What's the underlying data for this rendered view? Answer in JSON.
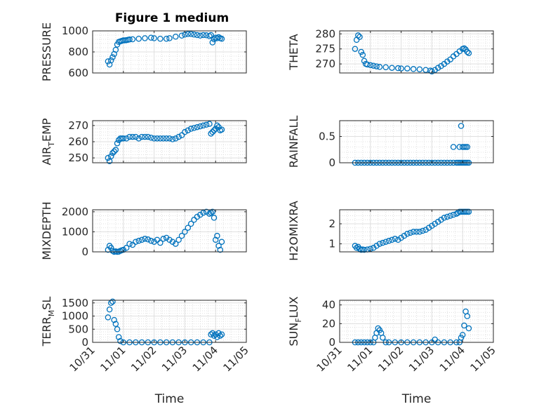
{
  "figure": {
    "title": "Figure 1 medium",
    "marker_color": "#0072BD"
  },
  "x_ticks": [
    "10/31",
    "11/01",
    "11/02",
    "11/03",
    "11/04",
    "11/05"
  ],
  "chart_data": [
    {
      "type": "scatter",
      "ylabel": "PRESSURE",
      "xlabel": "",
      "title": "Figure 1 medium",
      "xlim": [
        "10/31",
        "11/05"
      ],
      "ylim": [
        600,
        1000
      ],
      "yticks": [
        600,
        800,
        1000
      ],
      "grid": true,
      "x": [
        0.5,
        0.55,
        0.6,
        0.65,
        0.7,
        0.75,
        0.8,
        0.85,
        0.9,
        0.95,
        1.0,
        1.05,
        1.1,
        1.15,
        1.2,
        1.3,
        1.5,
        1.7,
        1.9,
        2.0,
        2.2,
        2.4,
        2.5,
        2.7,
        2.9,
        3.0,
        3.1,
        3.2,
        3.3,
        3.4,
        3.5,
        3.6,
        3.7,
        3.8,
        3.85,
        3.9,
        3.95,
        4.0,
        4.05,
        4.1,
        4.15,
        4.2
      ],
      "y": [
        710,
        680,
        720,
        750,
        780,
        820,
        870,
        895,
        900,
        905,
        910,
        910,
        912,
        915,
        918,
        920,
        925,
        930,
        935,
        930,
        925,
        925,
        930,
        945,
        955,
        965,
        970,
        970,
        965,
        960,
        955,
        960,
        958,
        950,
        960,
        890,
        920,
        935,
        930,
        940,
        930,
        925
      ]
    },
    {
      "type": "scatter",
      "ylabel": "THETA",
      "xlabel": "",
      "xlim": [
        "10/31",
        "11/05"
      ],
      "ylim": [
        267,
        281
      ],
      "yticks": [
        270,
        275,
        280
      ],
      "grid": true,
      "x": [
        0.5,
        0.55,
        0.6,
        0.65,
        0.7,
        0.75,
        0.8,
        0.85,
        0.9,
        1.0,
        1.1,
        1.2,
        1.3,
        1.5,
        1.7,
        1.9,
        2.0,
        2.2,
        2.4,
        2.6,
        2.8,
        2.95,
        3.0,
        3.1,
        3.2,
        3.3,
        3.4,
        3.5,
        3.6,
        3.7,
        3.8,
        3.9,
        4.0,
        4.05,
        4.1,
        4.15,
        4.2
      ],
      "y": [
        275,
        278,
        279.5,
        279,
        274,
        273,
        271,
        270,
        269.8,
        269.6,
        269.4,
        269.2,
        269,
        268.9,
        268.7,
        268.6,
        268.5,
        268.5,
        268.3,
        268.2,
        268,
        267.8,
        267.5,
        268,
        268.7,
        269.3,
        270,
        270.8,
        271.5,
        272.5,
        273.3,
        274.2,
        275,
        275.2,
        274.8,
        274,
        273.6
      ]
    },
    {
      "type": "scatter",
      "ylabel": "AIR_TEMP",
      "xlabel": "",
      "xlim": [
        "10/31",
        "11/05"
      ],
      "ylim": [
        247,
        273
      ],
      "yticks": [
        250,
        260,
        270
      ],
      "grid": true,
      "x": [
        0.5,
        0.55,
        0.6,
        0.65,
        0.7,
        0.75,
        0.8,
        0.85,
        0.9,
        0.95,
        1.0,
        1.1,
        1.2,
        1.3,
        1.4,
        1.5,
        1.6,
        1.7,
        1.8,
        1.9,
        2.0,
        2.1,
        2.2,
        2.3,
        2.4,
        2.5,
        2.6,
        2.7,
        2.8,
        2.9,
        3.0,
        3.1,
        3.2,
        3.3,
        3.4,
        3.5,
        3.6,
        3.7,
        3.8,
        3.85,
        3.9,
        3.95,
        4.0,
        4.05,
        4.1,
        4.15,
        4.2
      ],
      "y": [
        250,
        248,
        251,
        253,
        254,
        255,
        259,
        261,
        262,
        262,
        262,
        262,
        263,
        263,
        263,
        262,
        263,
        263,
        263,
        262.5,
        262,
        262,
        262,
        262,
        262,
        262,
        261.5,
        262,
        263,
        264,
        266,
        267,
        268,
        268.5,
        269,
        269.5,
        270,
        270.5,
        271,
        265,
        266,
        267,
        268,
        270,
        269,
        267,
        267.5
      ]
    },
    {
      "type": "scatter",
      "ylabel": "RAINFALL",
      "xlabel": "",
      "xlim": [
        "10/31",
        "11/05"
      ],
      "ylim": [
        0,
        0.8
      ],
      "yticks": [
        0,
        0.5
      ],
      "grid": true,
      "x": [
        0.5,
        0.6,
        0.7,
        0.8,
        0.9,
        1.0,
        1.1,
        1.2,
        1.3,
        1.4,
        1.5,
        1.6,
        1.7,
        1.8,
        1.9,
        2.0,
        2.1,
        2.2,
        2.3,
        2.4,
        2.5,
        2.6,
        2.7,
        2.8,
        2.9,
        3.0,
        3.1,
        3.2,
        3.3,
        3.4,
        3.5,
        3.6,
        3.7,
        3.8,
        3.85,
        3.9,
        3.95,
        4.0,
        4.05,
        4.1,
        4.15,
        4.2,
        3.7,
        3.9,
        4.0,
        4.05,
        4.1,
        4.15,
        3.95
      ],
      "y": [
        0,
        0,
        0,
        0,
        0,
        0,
        0,
        0,
        0,
        0,
        0,
        0,
        0,
        0,
        0,
        0,
        0,
        0,
        0,
        0,
        0,
        0,
        0,
        0,
        0,
        0,
        0,
        0,
        0,
        0,
        0,
        0,
        0,
        0,
        0,
        0,
        0,
        0,
        0,
        0,
        0,
        0,
        0.3,
        0.3,
        0.3,
        0.3,
        0.3,
        0.3,
        0.7
      ]
    },
    {
      "type": "scatter",
      "ylabel": "MIXDEPTH",
      "xlabel": "",
      "xlim": [
        "10/31",
        "11/05"
      ],
      "ylim": [
        0,
        2100
      ],
      "yticks": [
        0,
        1000,
        2000
      ],
      "grid": true,
      "x": [
        0.5,
        0.55,
        0.6,
        0.65,
        0.7,
        0.75,
        0.8,
        0.85,
        0.9,
        0.95,
        1.0,
        1.1,
        1.2,
        1.3,
        1.4,
        1.5,
        1.6,
        1.7,
        1.8,
        1.9,
        2.0,
        2.1,
        2.2,
        2.3,
        2.4,
        2.5,
        2.6,
        2.7,
        2.8,
        2.9,
        3.0,
        3.1,
        3.2,
        3.3,
        3.4,
        3.5,
        3.6,
        3.7,
        3.8,
        3.85,
        3.9,
        3.95,
        4.0,
        4.05,
        4.1,
        4.15,
        4.2
      ],
      "y": [
        100,
        300,
        200,
        50,
        0,
        20,
        0,
        10,
        50,
        80,
        100,
        200,
        400,
        350,
        500,
        550,
        600,
        650,
        620,
        550,
        500,
        600,
        450,
        650,
        700,
        600,
        500,
        400,
        600,
        800,
        1000,
        1200,
        1400,
        1600,
        1750,
        1850,
        1950,
        2000,
        1900,
        1950,
        2000,
        1700,
        600,
        800,
        300,
        100,
        500
      ]
    },
    {
      "type": "scatter",
      "ylabel": "H2OMIXRA",
      "xlabel": "",
      "xlim": [
        "10/31",
        "11/05"
      ],
      "ylim": [
        0.6,
        2.7
      ],
      "yticks": [
        1,
        2
      ],
      "grid": true,
      "x": [
        0.5,
        0.55,
        0.6,
        0.65,
        0.7,
        0.75,
        0.8,
        0.9,
        1.0,
        1.1,
        1.2,
        1.3,
        1.4,
        1.5,
        1.6,
        1.7,
        1.8,
        1.9,
        2.0,
        2.1,
        2.2,
        2.3,
        2.4,
        2.5,
        2.6,
        2.7,
        2.8,
        2.9,
        3.0,
        3.1,
        3.2,
        3.3,
        3.4,
        3.5,
        3.6,
        3.7,
        3.8,
        3.85,
        3.9,
        3.95,
        4.0,
        4.05,
        4.1,
        4.15,
        4.2
      ],
      "y": [
        0.9,
        0.8,
        0.85,
        0.75,
        0.7,
        0.72,
        0.7,
        0.72,
        0.75,
        0.8,
        0.9,
        1.0,
        1.05,
        1.1,
        1.15,
        1.2,
        1.25,
        1.2,
        1.3,
        1.4,
        1.5,
        1.55,
        1.6,
        1.6,
        1.6,
        1.65,
        1.7,
        1.8,
        1.9,
        2.0,
        2.1,
        2.2,
        2.3,
        2.35,
        2.4,
        2.45,
        2.5,
        2.55,
        2.6,
        2.6,
        2.6,
        2.6,
        2.6,
        2.6,
        2.6
      ]
    },
    {
      "type": "scatter",
      "ylabel": "TERR_MSL",
      "xlabel": "Time",
      "xlim": [
        "10/31",
        "11/05"
      ],
      "ylim": [
        0,
        1600
      ],
      "yticks": [
        0,
        500,
        1000,
        1500
      ],
      "grid": true,
      "x": [
        0.5,
        0.55,
        0.6,
        0.65,
        0.7,
        0.75,
        0.8,
        0.85,
        0.9,
        1.0,
        1.2,
        1.4,
        1.6,
        1.8,
        2.0,
        2.2,
        2.4,
        2.6,
        2.8,
        3.0,
        3.2,
        3.4,
        3.6,
        3.8,
        3.85,
        3.9,
        3.95,
        4.0,
        4.05,
        4.1,
        4.15,
        4.2
      ],
      "y": [
        950,
        1250,
        1500,
        1550,
        850,
        700,
        500,
        200,
        50,
        0,
        0,
        0,
        0,
        0,
        0,
        0,
        0,
        0,
        0,
        0,
        0,
        0,
        0,
        0,
        300,
        350,
        250,
        300,
        200,
        350,
        250,
        300
      ]
    },
    {
      "type": "scatter",
      "ylabel": "SUN_FLUX",
      "xlabel": "Time",
      "xlim": [
        "10/31",
        "11/05"
      ],
      "ylim": [
        0,
        45
      ],
      "yticks": [
        0,
        20,
        40
      ],
      "grid": true,
      "x": [
        0.5,
        0.6,
        0.7,
        0.8,
        0.9,
        1.0,
        1.1,
        1.15,
        1.2,
        1.25,
        1.3,
        1.35,
        1.4,
        1.5,
        1.6,
        1.8,
        2.0,
        2.2,
        2.4,
        2.6,
        2.8,
        3.0,
        3.1,
        3.2,
        3.4,
        3.6,
        3.8,
        3.9,
        3.95,
        4.0,
        4.05,
        4.1,
        4.15,
        4.2
      ],
      "y": [
        0,
        0,
        0,
        0,
        0,
        0,
        0,
        5,
        10,
        15,
        13,
        10,
        5,
        0,
        0,
        0,
        0,
        0,
        0,
        0,
        0,
        0,
        3,
        0,
        0,
        0,
        0,
        0,
        5,
        8,
        18,
        33,
        28,
        15
      ]
    }
  ]
}
